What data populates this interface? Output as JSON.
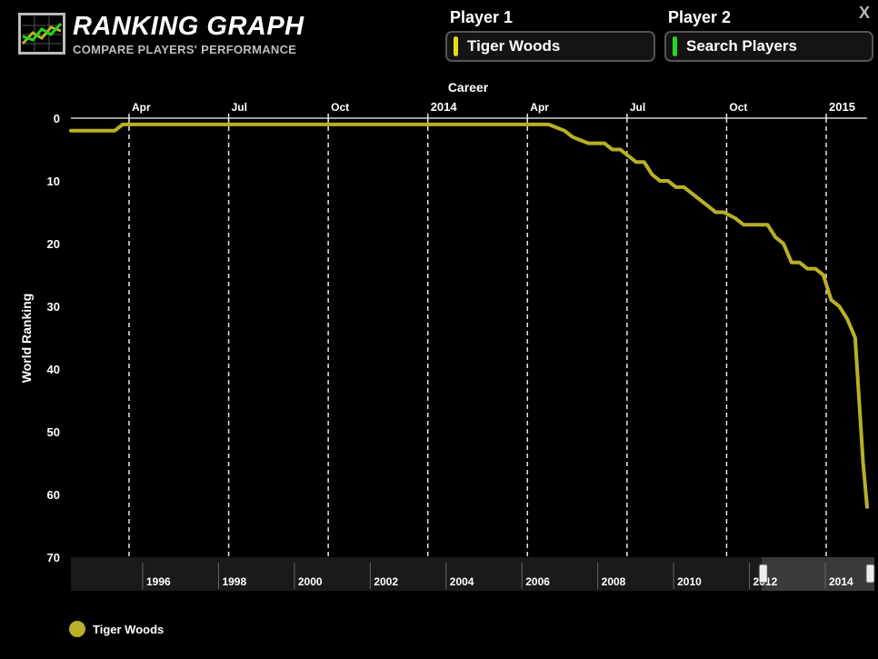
{
  "header": {
    "title": "RANKING GRAPH",
    "subtitle": "COMPARE PLAYERS' PERFORMANCE",
    "logo_icon": "line-chart-icon",
    "close_label": "X"
  },
  "player1": {
    "label": "Player 1",
    "value": "Tiger Woods",
    "color": "#e4dc1a"
  },
  "player2": {
    "label": "Player 2",
    "placeholder": "Search Players",
    "color": "#27d61f"
  },
  "chart_data": {
    "type": "line",
    "title": "Career",
    "ylabel": "World Ranking",
    "ylim": [
      0,
      70
    ],
    "y_inverted": true,
    "y_ticks": [
      0,
      10,
      20,
      30,
      40,
      50,
      60,
      70
    ],
    "top_ticks": [
      "Apr",
      "Jul",
      "Oct",
      "2014",
      "Apr",
      "Jul",
      "Oct",
      "2015"
    ],
    "top_ticks_bold": [
      false,
      false,
      false,
      true,
      false,
      false,
      false,
      true
    ],
    "x": [
      0,
      0.045,
      0.055,
      0.065,
      0.1,
      0.3,
      0.5,
      0.59,
      0.6,
      0.62,
      0.63,
      0.65,
      0.67,
      0.68,
      0.69,
      0.7,
      0.71,
      0.72,
      0.73,
      0.74,
      0.75,
      0.76,
      0.77,
      0.78,
      0.79,
      0.8,
      0.81,
      0.82,
      0.835,
      0.845,
      0.855,
      0.865,
      0.875,
      0.885,
      0.895,
      0.905,
      0.915,
      0.925,
      0.935,
      0.945,
      0.955,
      0.965,
      0.975,
      0.985,
      0.995,
      1.0
    ],
    "series": [
      {
        "name": "Tiger Woods",
        "color": "#b8b026",
        "values": [
          2,
          2,
          2,
          1,
          1,
          1,
          1,
          1,
          1,
          2,
          3,
          4,
          4,
          5,
          5,
          6,
          7,
          7,
          9,
          10,
          10,
          11,
          11,
          12,
          13,
          14,
          15,
          15,
          16,
          17,
          17,
          17,
          17,
          19,
          20,
          23,
          23,
          24,
          24,
          25,
          29,
          30,
          32,
          35,
          55,
          62
        ]
      }
    ],
    "timeline": {
      "labels": [
        "1996",
        "1998",
        "2000",
        "2002",
        "2004",
        "2006",
        "2008",
        "2010",
        "2012",
        "2014"
      ],
      "window": [
        0.86,
        1.0
      ]
    },
    "legend": "bottom-left"
  }
}
